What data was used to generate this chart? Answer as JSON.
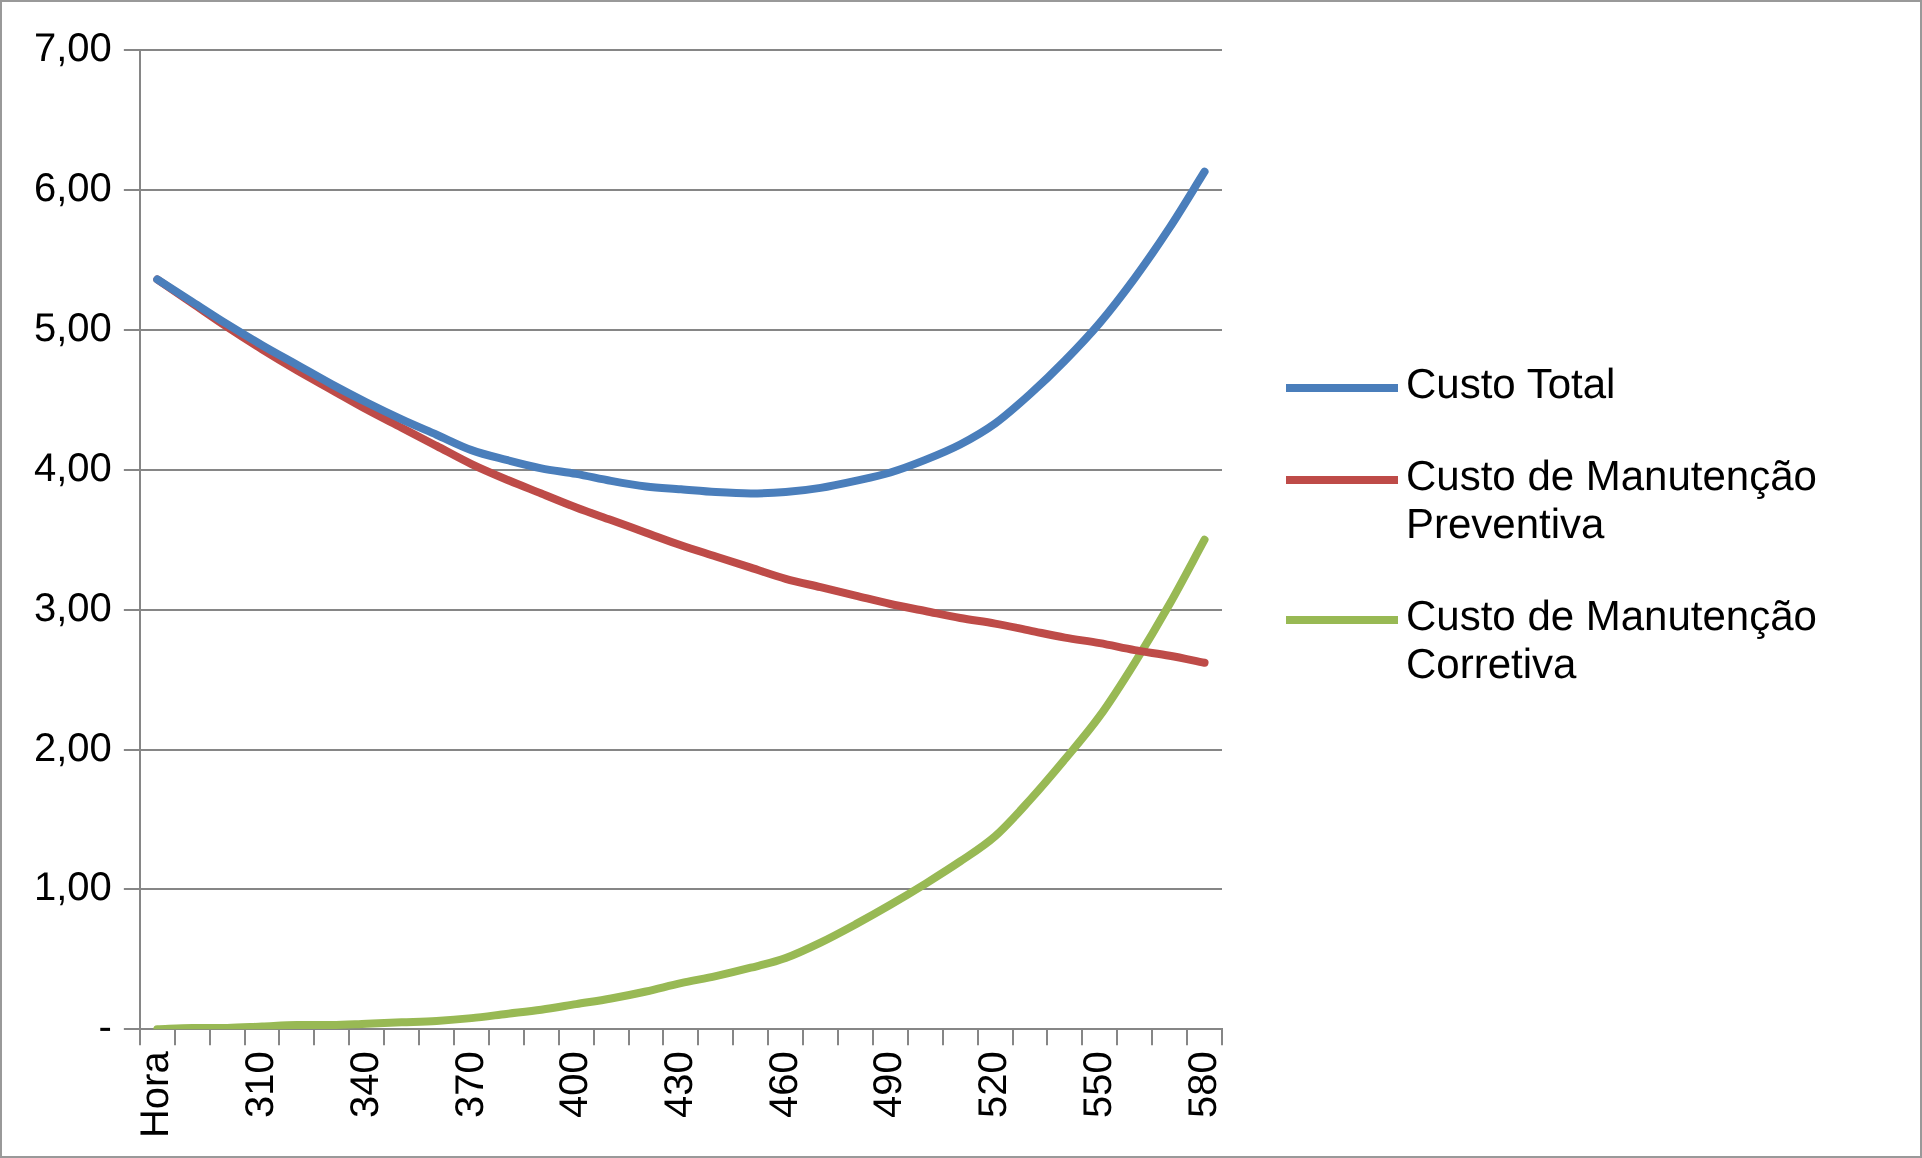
{
  "chart_data": {
    "type": "line",
    "categories": [
      "Hora",
      null,
      null,
      "310",
      null,
      null,
      "340",
      null,
      null,
      "370",
      null,
      null,
      "400",
      null,
      null,
      "430",
      null,
      null,
      "460",
      null,
      null,
      "490",
      null,
      null,
      "520",
      null,
      null,
      "550",
      null,
      null,
      "580"
    ],
    "series": [
      {
        "name": "Custo Total",
        "color": "#4a7ebb",
        "values": [
          5.36,
          5.2,
          5.04,
          4.89,
          4.75,
          4.61,
          4.48,
          4.36,
          4.25,
          4.14,
          4.07,
          4.01,
          3.97,
          3.92,
          3.88,
          3.86,
          3.84,
          3.83,
          3.84,
          3.87,
          3.92,
          3.98,
          4.07,
          4.18,
          4.33,
          4.54,
          4.78,
          5.05,
          5.37,
          5.73,
          6.13
        ]
      },
      {
        "name": "Custo de Manutenção Preventiva",
        "color": "#be4b48",
        "values": [
          5.36,
          5.19,
          5.02,
          4.86,
          4.71,
          4.57,
          4.43,
          4.3,
          4.17,
          4.04,
          3.93,
          3.83,
          3.73,
          3.64,
          3.55,
          3.46,
          3.38,
          3.3,
          3.22,
          3.16,
          3.1,
          3.04,
          2.99,
          2.94,
          2.9,
          2.85,
          2.8,
          2.76,
          2.71,
          2.67,
          2.62
        ]
      },
      {
        "name": "Custo de Manutenção Corretiva",
        "color": "#98b954",
        "values": [
          0.0,
          0.01,
          0.01,
          0.02,
          0.03,
          0.03,
          0.04,
          0.05,
          0.06,
          0.08,
          0.11,
          0.14,
          0.18,
          0.22,
          0.27,
          0.33,
          0.38,
          0.44,
          0.51,
          0.62,
          0.75,
          0.89,
          1.04,
          1.2,
          1.38,
          1.64,
          1.93,
          2.24,
          2.62,
          3.04,
          3.5
        ]
      }
    ],
    "ylim": [
      0,
      7
    ],
    "yticks": [
      {
        "value": 0,
        "label": "-"
      },
      {
        "value": 1,
        "label": "1,00"
      },
      {
        "value": 2,
        "label": "2,00"
      },
      {
        "value": 3,
        "label": "3,00"
      },
      {
        "value": 4,
        "label": "4,00"
      },
      {
        "value": 5,
        "label": "5,00"
      },
      {
        "value": 6,
        "label": "6,00"
      },
      {
        "value": 7,
        "label": "7,00"
      }
    ],
    "grid": "y",
    "legend": "right",
    "marker": "none",
    "line_style": "solid"
  }
}
